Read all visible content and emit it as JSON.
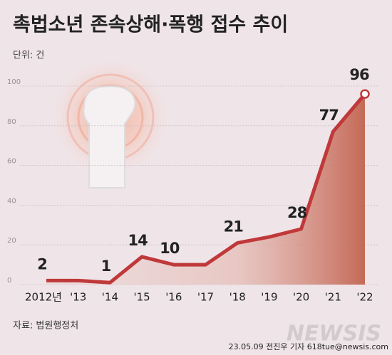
{
  "chart_data": {
    "type": "line",
    "title": "촉법소년 존속상해·폭행 접수 추이",
    "unit_label": "단위: 건",
    "source": "자료: 법원행정처",
    "credit": "23.05.09 전진우 기자 618tue@newsis.com",
    "watermark": "NEWSIS",
    "categories": [
      "2012년",
      "'13",
      "'14",
      "'15",
      "'16",
      "'17",
      "'18",
      "'19",
      "'20",
      "'21",
      "'22"
    ],
    "values": [
      2,
      2,
      1,
      14,
      10,
      10,
      21,
      24,
      28,
      77,
      96
    ],
    "value_labels": [
      "2",
      null,
      "1",
      "14",
      "10",
      null,
      "21",
      null,
      "28",
      "77",
      "96"
    ],
    "color": "#c0393a",
    "ylim": [
      0,
      100
    ],
    "yticks": [
      0,
      20,
      40,
      60,
      80,
      100
    ],
    "grid": true
  }
}
